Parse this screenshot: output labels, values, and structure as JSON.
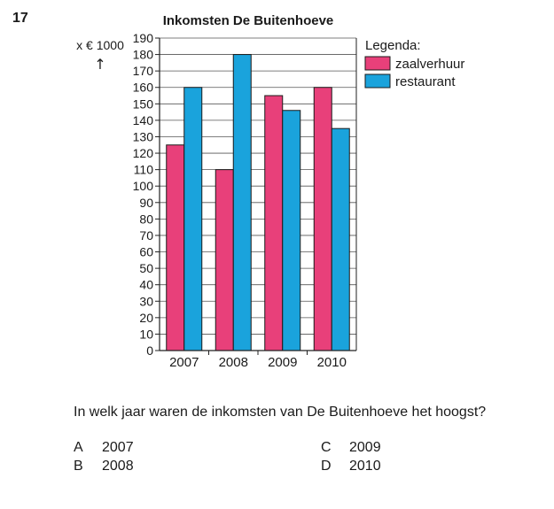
{
  "question": {
    "number": "17",
    "text": "In welk jaar waren de inkomsten van De Buitenhoeve het hoogst?",
    "options": [
      {
        "letter": "A",
        "text": "2007"
      },
      {
        "letter": "B",
        "text": "2008"
      },
      {
        "letter": "C",
        "text": "2009"
      },
      {
        "letter": "D",
        "text": "2010"
      }
    ]
  },
  "chart_data": {
    "type": "bar",
    "title": "Inkomsten De Buitenhoeve",
    "ylabel": "x € 1000",
    "ylabel_arrow": "↑",
    "categories": [
      "2007",
      "2008",
      "2009",
      "2010"
    ],
    "series": [
      {
        "name": "zaalverhuur",
        "color": "#e8407a",
        "values": [
          125,
          110,
          155,
          160
        ]
      },
      {
        "name": "restaurant",
        "color": "#1aa3dc",
        "values": [
          160,
          180,
          146,
          135
        ]
      }
    ],
    "ylim": [
      0,
      190
    ],
    "yticks": [
      "0",
      "10",
      "20",
      "30",
      "40",
      "50",
      "60",
      "70",
      "80",
      "90",
      "100",
      "110",
      "120",
      "130",
      "140",
      "150",
      "160",
      "170",
      "180",
      "190"
    ],
    "grid": true,
    "legend_title": "Legenda:",
    "legend_position": "right"
  }
}
